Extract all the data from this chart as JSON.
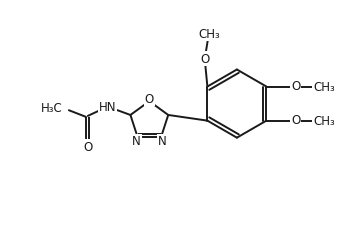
{
  "bg_color": "#ffffff",
  "line_color": "#1a1a1a",
  "line_width": 1.4,
  "font_size": 8.5,
  "figsize": [
    3.46,
    2.3
  ],
  "dpi": 100,
  "xlim": [
    0,
    7.0
  ],
  "ylim": [
    0,
    4.8
  ]
}
